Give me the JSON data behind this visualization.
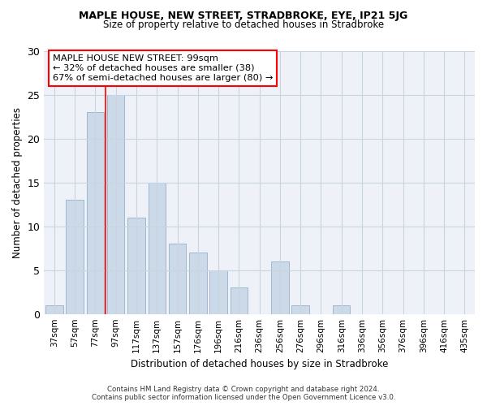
{
  "title1": "MAPLE HOUSE, NEW STREET, STRADBROKE, EYE, IP21 5JG",
  "title2": "Size of property relative to detached houses in Stradbroke",
  "xlabel": "Distribution of detached houses by size in Stradbroke",
  "ylabel": "Number of detached properties",
  "bar_labels": [
    "37sqm",
    "57sqm",
    "77sqm",
    "97sqm",
    "117sqm",
    "137sqm",
    "157sqm",
    "176sqm",
    "196sqm",
    "216sqm",
    "236sqm",
    "256sqm",
    "276sqm",
    "296sqm",
    "316sqm",
    "336sqm",
    "356sqm",
    "376sqm",
    "396sqm",
    "416sqm",
    "435sqm"
  ],
  "bar_values": [
    1,
    13,
    23,
    25,
    11,
    15,
    8,
    7,
    5,
    3,
    0,
    6,
    1,
    0,
    1,
    0,
    0,
    0,
    0,
    0,
    0
  ],
  "bar_color": "#ccd9e8",
  "bar_edge_color": "#a0b8ce",
  "annotation_text": "MAPLE HOUSE NEW STREET: 99sqm\n← 32% of detached houses are smaller (38)\n67% of semi-detached houses are larger (80) →",
  "annotation_box_color": "white",
  "annotation_box_edge_color": "red",
  "vline_color": "red",
  "vline_x": 2.5,
  "ylim": [
    0,
    30
  ],
  "yticks": [
    0,
    5,
    10,
    15,
    20,
    25,
    30
  ],
  "grid_color": "#c8d4e0",
  "background_color": "#eef2f8",
  "footer1": "Contains HM Land Registry data © Crown copyright and database right 2024.",
  "footer2": "Contains public sector information licensed under the Open Government Licence v3.0."
}
